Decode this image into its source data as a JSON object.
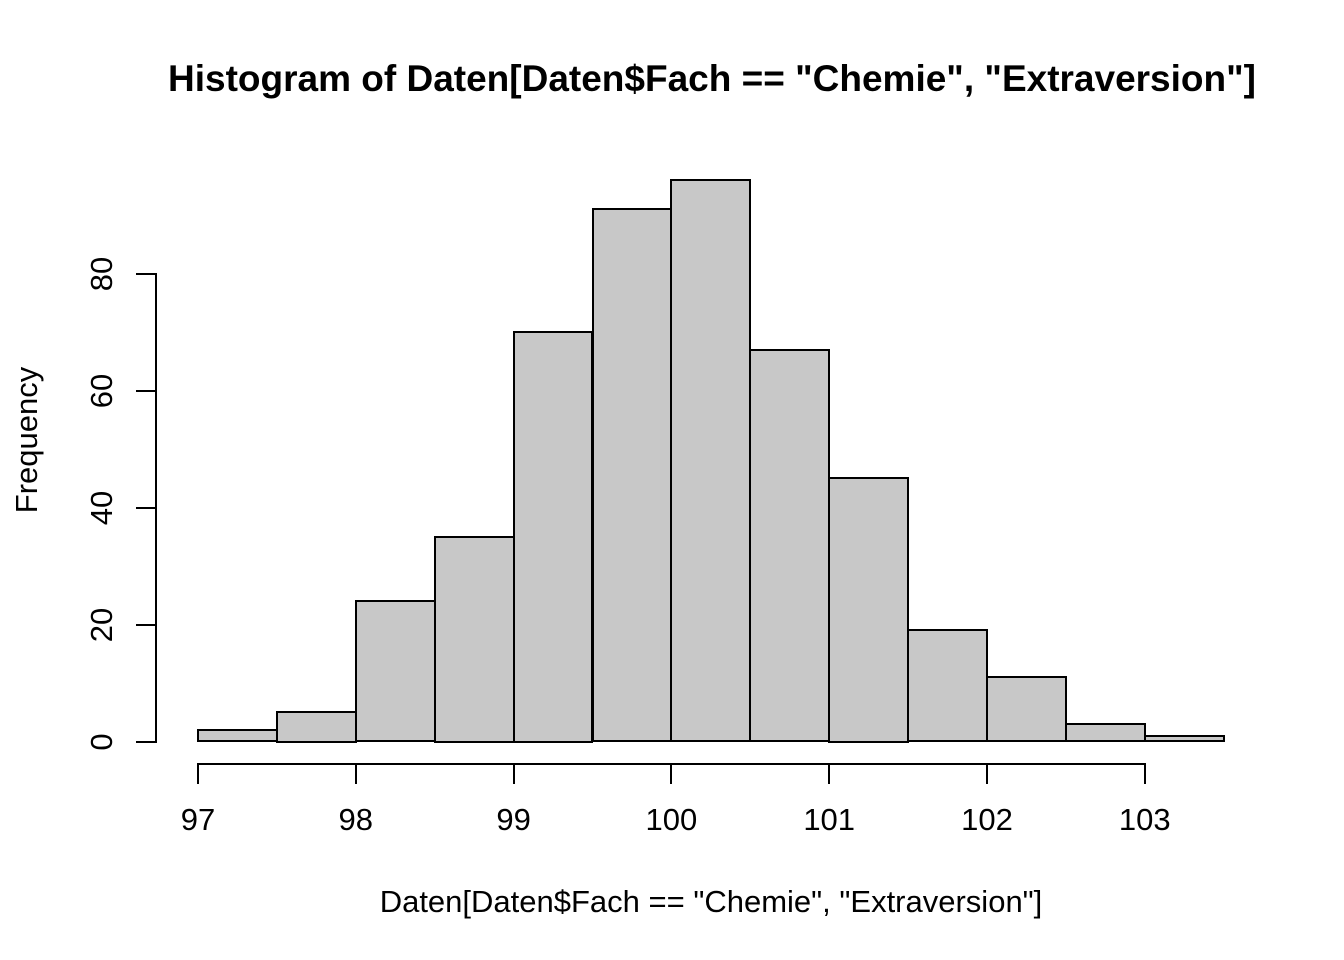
{
  "figure": {
    "title": "Histogram of Daten[Daten$Fach == \"Chemie\", \"Extraversion\"]",
    "xlabel": "Daten[Daten$Fach == \"Chemie\", \"Extraversion\"]",
    "ylabel": "Frequency"
  },
  "chart_data": {
    "type": "bar",
    "subtype": "histogram",
    "title": "Histogram of Daten[Daten$Fach == \"Chemie\", \"Extraversion\"]",
    "xlabel": "Daten[Daten$Fach == \"Chemie\", \"Extraversion\"]",
    "ylabel": "Frequency",
    "bin_edges": [
      97,
      97.5,
      98,
      98.5,
      99,
      99.5,
      100,
      100.5,
      101,
      101.5,
      102,
      102.5,
      103,
      103.5
    ],
    "counts": [
      2,
      5,
      24,
      35,
      70,
      91,
      96,
      67,
      45,
      19,
      11,
      3,
      1
    ],
    "x_ticks": [
      97,
      98,
      99,
      100,
      101,
      102,
      103
    ],
    "x_tick_labels": [
      "97",
      "98",
      "99",
      "100",
      "101",
      "102",
      "103"
    ],
    "y_ticks": [
      0,
      20,
      40,
      60,
      80
    ],
    "y_tick_labels": [
      "0",
      "20",
      "40",
      "60",
      "80"
    ],
    "xlim": [
      97,
      103.5
    ],
    "ylim": [
      0,
      96
    ],
    "grid": false,
    "legend": "none",
    "bar_fill_color": "#C8C8C8",
    "bar_border_color": "#000000",
    "axis_color": "#000000",
    "background_color": "#FFFFFF"
  }
}
